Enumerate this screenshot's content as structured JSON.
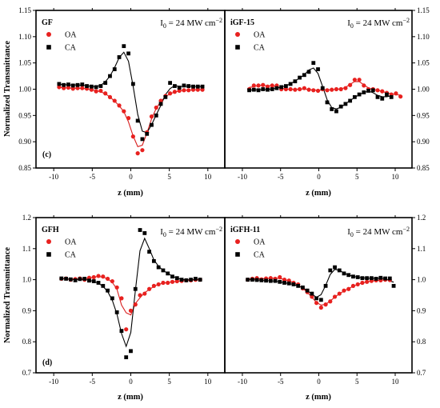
{
  "colors": {
    "oa": "#e8211f",
    "ca": "#000000",
    "oa_fit": "#d81e1e",
    "ca_fit": "#000000"
  },
  "axes": {
    "xlabel": "z (mm)",
    "ylabel": "Normalized Transmittance",
    "top_yticks": [
      "0.85",
      "0.90",
      "0.95",
      "1.00",
      "1.05",
      "1.10",
      "1.15"
    ],
    "bottom_yticks": [
      "0.7",
      "0.8",
      "0.9",
      "1.0",
      "1.1",
      "1.2"
    ],
    "xticks": [
      "-10",
      "-5",
      "0",
      "5",
      "10"
    ]
  },
  "chart_data": [
    {
      "type": "scatter",
      "panel": "top-left",
      "sample": "GF",
      "panel_label": "(c)",
      "intensity": {
        "main": "I",
        "sub": "0",
        "rest": " = 24 MW cm",
        "sup": "−2"
      },
      "xlim": [
        -12.3,
        12.2
      ],
      "ylim": [
        0.85,
        1.15
      ],
      "series": [
        {
          "name": "OA",
          "marker": "circle",
          "x": [
            -9.3,
            -8.7,
            -8.1,
            -7.5,
            -6.9,
            -6.3,
            -5.7,
            -5.1,
            -4.5,
            -3.9,
            -3.3,
            -2.7,
            -2.1,
            -1.5,
            -0.9,
            -0.3,
            0.3,
            0.9,
            1.5,
            2.1,
            2.7,
            3.3,
            3.9,
            4.5,
            5.1,
            5.7,
            6.3,
            6.9,
            7.5,
            8.1,
            8.7,
            9.3
          ],
          "y": [
            1.004,
            1.002,
            1.003,
            1.001,
            1.002,
            1.002,
            1.001,
            0.999,
            0.996,
            0.997,
            0.992,
            0.985,
            0.978,
            0.969,
            0.958,
            0.945,
            0.91,
            0.878,
            0.884,
            0.918,
            0.948,
            0.965,
            0.978,
            0.987,
            0.992,
            0.995,
            0.997,
            0.998,
            0.998,
            0.999,
            0.999,
            0.999
          ]
        },
        {
          "name": "CA",
          "marker": "square",
          "x": [
            -9.3,
            -8.7,
            -8.1,
            -7.5,
            -6.9,
            -6.3,
            -5.7,
            -5.1,
            -4.5,
            -3.9,
            -3.3,
            -2.7,
            -2.1,
            -1.5,
            -0.9,
            -0.3,
            0.3,
            0.9,
            1.5,
            2.1,
            2.7,
            3.3,
            3.9,
            4.5,
            5.1,
            5.7,
            6.3,
            6.9,
            7.5,
            8.1,
            8.7,
            9.3
          ],
          "y": [
            1.01,
            1.008,
            1.009,
            1.007,
            1.008,
            1.009,
            1.006,
            1.005,
            1.004,
            1.006,
            1.012,
            1.025,
            1.038,
            1.061,
            1.082,
            1.068,
            1.01,
            0.94,
            0.905,
            0.915,
            0.932,
            0.95,
            0.972,
            0.985,
            1.012,
            1.006,
            1.003,
            1.007,
            1.006,
            1.005,
            1.005,
            1.005
          ]
        }
      ]
    },
    {
      "type": "scatter",
      "panel": "top-right",
      "sample": "iGF-15",
      "intensity": {
        "main": "I",
        "sub": "0",
        "rest": " = 24 MW cm",
        "sup": "−2"
      },
      "xlim": [
        -12.3,
        12.2
      ],
      "ylim": [
        0.85,
        1.15
      ],
      "series": [
        {
          "name": "OA",
          "marker": "circle",
          "x": [
            -9.1,
            -8.5,
            -7.9,
            -7.3,
            -6.7,
            -6.1,
            -5.5,
            -4.9,
            -4.3,
            -3.7,
            -3.1,
            -2.5,
            -1.9,
            -1.3,
            -0.7,
            -0.1,
            0.5,
            1.1,
            1.7,
            2.3,
            2.9,
            3.5,
            4.1,
            4.7,
            5.3,
            5.9,
            6.5,
            7.1,
            7.7,
            8.3,
            8.9,
            9.5,
            10.1,
            10.7
          ],
          "y": [
            1.0,
            1.007,
            1.007,
            1.008,
            1.005,
            1.007,
            1.007,
            1.0,
            1.0,
            1.0,
            0.999,
            1.0,
            1.002,
            0.999,
            0.998,
            0.997,
            1.0,
            0.998,
            0.999,
            1.0,
            1.0,
            1.002,
            1.008,
            1.018,
            1.018,
            1.007,
            1.0,
            1.0,
            0.998,
            0.996,
            0.993,
            0.99,
            0.992,
            0.986
          ]
        },
        {
          "name": "CA",
          "marker": "square",
          "x": [
            -9.1,
            -8.5,
            -7.9,
            -7.3,
            -6.7,
            -6.1,
            -5.5,
            -4.9,
            -4.3,
            -3.7,
            -3.1,
            -2.5,
            -1.9,
            -1.3,
            -0.7,
            -0.1,
            0.5,
            1.1,
            1.7,
            2.3,
            2.9,
            3.5,
            4.1,
            4.7,
            5.3,
            5.9,
            6.5,
            7.1,
            7.7,
            8.3,
            8.9,
            9.5
          ],
          "y": [
            0.998,
            0.999,
            0.998,
            1.0,
            0.999,
            1.0,
            1.002,
            1.004,
            1.006,
            1.01,
            1.015,
            1.022,
            1.027,
            1.033,
            1.05,
            1.038,
            1.002,
            0.975,
            0.962,
            0.958,
            0.967,
            0.972,
            0.978,
            0.985,
            0.99,
            0.994,
            0.997,
            0.998,
            0.985,
            0.982,
            0.99,
            0.985
          ]
        }
      ]
    },
    {
      "type": "scatter",
      "panel": "bottom-left",
      "sample": "GFH",
      "panel_label": "(d)",
      "intensity": {
        "main": "I",
        "sub": "0",
        "rest": " = 24 MW cm",
        "sup": "−2"
      },
      "xlim": [
        -12.3,
        12.2
      ],
      "ylim": [
        0.7,
        1.2
      ],
      "series": [
        {
          "name": "OA",
          "marker": "circle",
          "x": [
            -9.0,
            -8.4,
            -7.8,
            -7.2,
            -6.6,
            -6.0,
            -5.4,
            -4.8,
            -4.2,
            -3.6,
            -3.0,
            -2.4,
            -1.8,
            -1.2,
            -0.6,
            0.0,
            0.6,
            1.2,
            1.8,
            2.4,
            3.0,
            3.6,
            4.2,
            4.8,
            5.4,
            6.0,
            6.6,
            7.2,
            7.8,
            8.4,
            9.0
          ],
          "y": [
            1.003,
            1.004,
            1.0,
            1.002,
            1.004,
            1.0,
            1.006,
            1.008,
            1.012,
            1.01,
            1.003,
            0.995,
            0.975,
            0.94,
            0.84,
            0.9,
            0.92,
            0.95,
            0.955,
            0.97,
            0.98,
            0.985,
            0.99,
            0.99,
            0.993,
            0.995,
            0.996,
            0.998,
            0.998,
            1.0,
            1.0
          ]
        },
        {
          "name": "CA",
          "marker": "square",
          "x": [
            -9.0,
            -8.4,
            -7.8,
            -7.2,
            -6.6,
            -6.0,
            -5.4,
            -4.8,
            -4.2,
            -3.6,
            -3.0,
            -2.4,
            -1.8,
            -1.2,
            -0.6,
            0.0,
            0.6,
            1.2,
            1.8,
            2.4,
            3.0,
            3.6,
            4.2,
            4.8,
            5.4,
            6.0,
            6.6,
            7.2,
            7.8,
            8.4,
            9.0
          ],
          "y": [
            1.004,
            1.003,
            1.001,
            0.998,
            1.002,
            1.003,
            0.997,
            0.995,
            0.99,
            0.98,
            0.965,
            0.94,
            0.895,
            0.835,
            0.75,
            0.77,
            0.97,
            1.16,
            1.15,
            1.09,
            1.06,
            1.04,
            1.03,
            1.02,
            1.01,
            1.005,
            1.0,
            0.998,
            1.0,
            1.003,
            1.0
          ]
        }
      ]
    },
    {
      "type": "scatter",
      "panel": "bottom-right",
      "sample": "iGFH-11",
      "intensity": {
        "main": "I",
        "sub": "0",
        "rest": " = 24 MW cm",
        "sup": "−2"
      },
      "xlim": [
        -12.3,
        12.2
      ],
      "ylim": [
        0.7,
        1.2
      ],
      "series": [
        {
          "name": "OA",
          "marker": "circle",
          "x": [
            -9.3,
            -8.7,
            -8.1,
            -7.5,
            -6.9,
            -6.3,
            -5.7,
            -5.1,
            -4.5,
            -3.9,
            -3.3,
            -2.7,
            -2.1,
            -1.5,
            -0.9,
            -0.3,
            0.3,
            0.9,
            1.5,
            2.1,
            2.7,
            3.3,
            3.9,
            4.5,
            5.1,
            5.7,
            6.3,
            6.9,
            7.5,
            8.1,
            8.7,
            9.3
          ],
          "y": [
            1.0,
            1.003,
            1.005,
            1.001,
            1.004,
            1.005,
            1.003,
            1.008,
            1.0,
            0.997,
            0.99,
            0.985,
            0.972,
            0.96,
            0.945,
            0.925,
            0.91,
            0.92,
            0.93,
            0.945,
            0.955,
            0.965,
            0.97,
            0.98,
            0.985,
            0.99,
            0.993,
            0.996,
            0.998,
            0.998,
            1.0,
            0.999
          ]
        },
        {
          "name": "CA",
          "marker": "square",
          "x": [
            -9.3,
            -8.7,
            -8.1,
            -7.5,
            -6.9,
            -6.3,
            -5.7,
            -5.1,
            -4.5,
            -3.9,
            -3.3,
            -2.7,
            -2.1,
            -1.5,
            -0.9,
            -0.3,
            0.3,
            0.9,
            1.5,
            2.1,
            2.7,
            3.3,
            3.9,
            4.5,
            5.1,
            5.7,
            6.3,
            6.9,
            7.5,
            8.1,
            8.7,
            9.3,
            9.8
          ],
          "y": [
            1.0,
            1.0,
            0.999,
            0.998,
            0.997,
            0.996,
            0.996,
            0.993,
            0.99,
            0.988,
            0.985,
            0.98,
            0.975,
            0.965,
            0.955,
            0.94,
            0.935,
            0.98,
            1.03,
            1.04,
            1.03,
            1.02,
            1.015,
            1.01,
            1.008,
            1.005,
            1.005,
            1.005,
            1.003,
            1.006,
            1.004,
            1.004,
            0.98
          ]
        }
      ]
    }
  ]
}
